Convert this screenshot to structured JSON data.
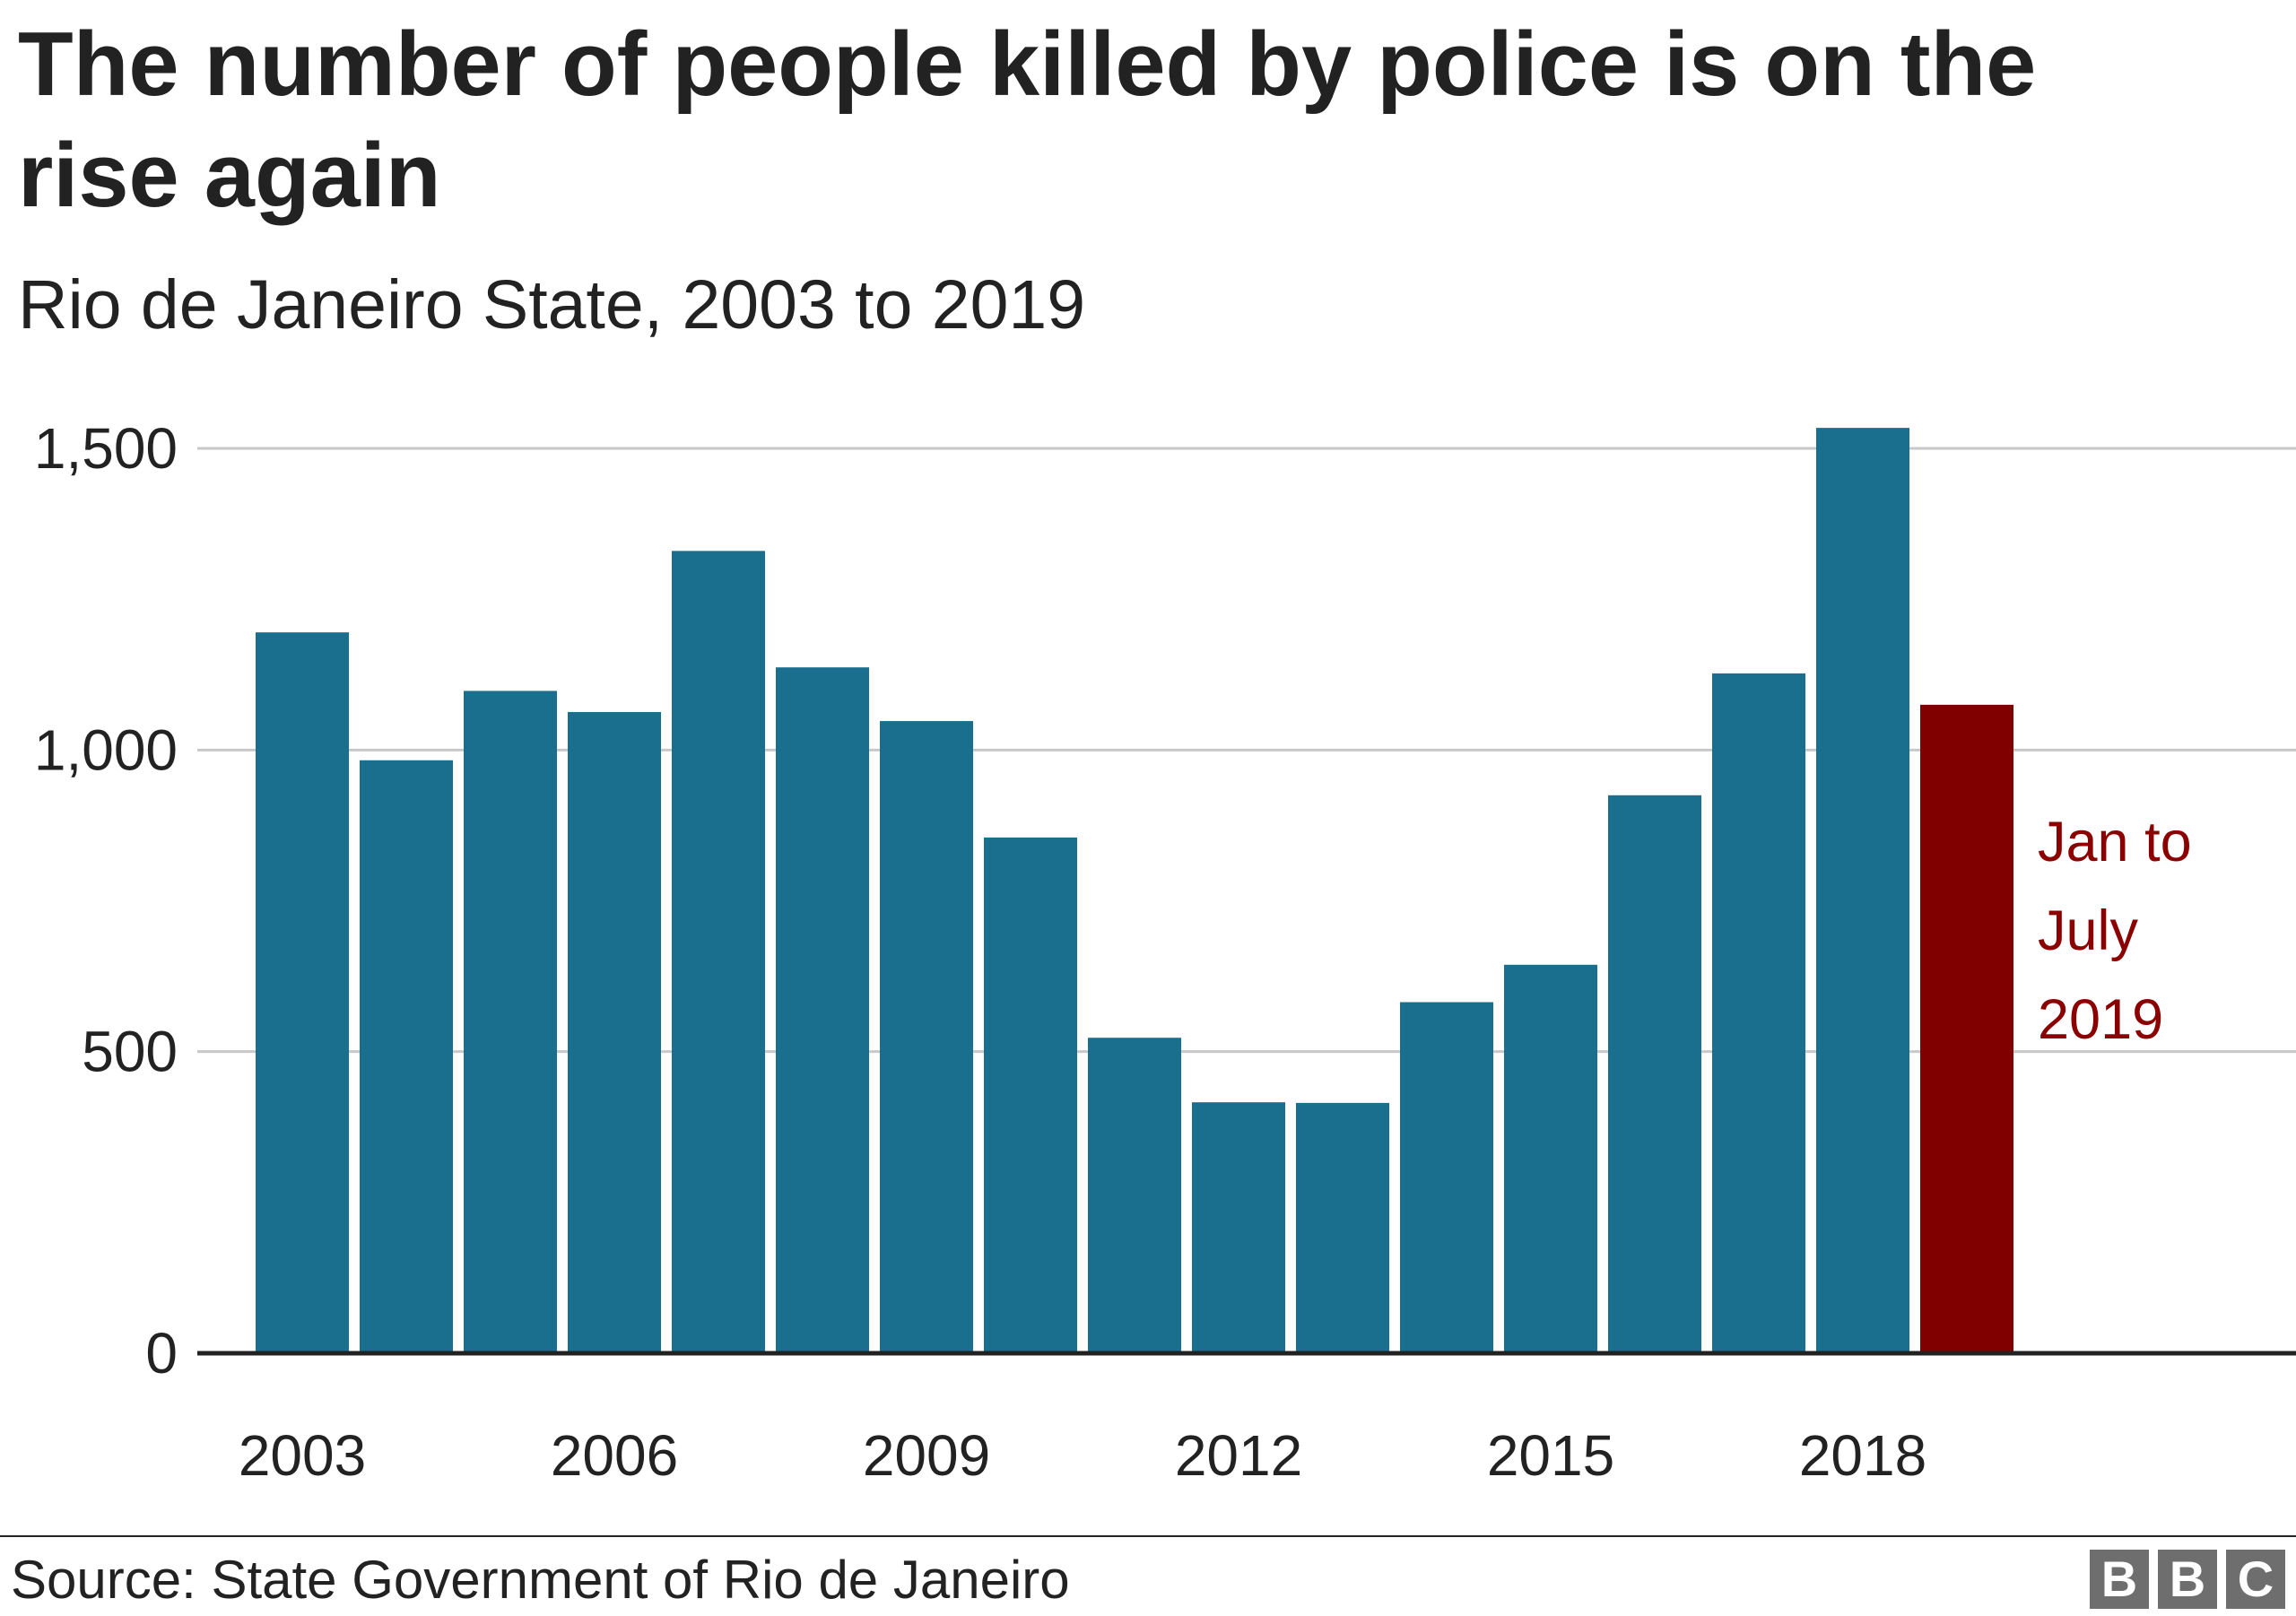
{
  "title": "The number of people killed by police is on the rise again",
  "subtitle": "Rio de Janeiro State, 2003 to 2019",
  "source": "Source: State Government of Rio de Janeiro",
  "logo": [
    "B",
    "B",
    "C"
  ],
  "colors": {
    "bar": "#1a6e8e",
    "highlight": "#800000",
    "annotation": "#8b0000",
    "grid": "#c8c8c8",
    "axis": "#222222"
  },
  "chart_data": {
    "type": "bar",
    "title": "The number of people killed by police is on the rise again",
    "subtitle": "Rio de Janeiro State, 2003 to 2019",
    "xlabel": "",
    "ylabel": "",
    "ylim": [
      0,
      1500
    ],
    "yticks": [
      0,
      500,
      1000,
      1500
    ],
    "ytick_labels": [
      "0",
      "500",
      "1,000",
      "1,500"
    ],
    "categories": [
      "2003",
      "2004",
      "2005",
      "2006",
      "2007",
      "2008",
      "2009",
      "2010",
      "2011",
      "2012",
      "2013",
      "2014",
      "2015",
      "2016",
      "2017",
      "2018",
      "2019"
    ],
    "xtick_labels": [
      "2003",
      "",
      "",
      "2006",
      "",
      "",
      "2009",
      "",
      "",
      "2012",
      "",
      "",
      "2015",
      "",
      "",
      "2018",
      ""
    ],
    "values": [
      1195,
      983,
      1098,
      1063,
      1330,
      1137,
      1048,
      855,
      523,
      416,
      415,
      582,
      644,
      925,
      1127,
      1534,
      1075
    ],
    "highlight_index": 16,
    "annotation": [
      "Jan to",
      "July",
      "2019"
    ],
    "grid": true
  }
}
